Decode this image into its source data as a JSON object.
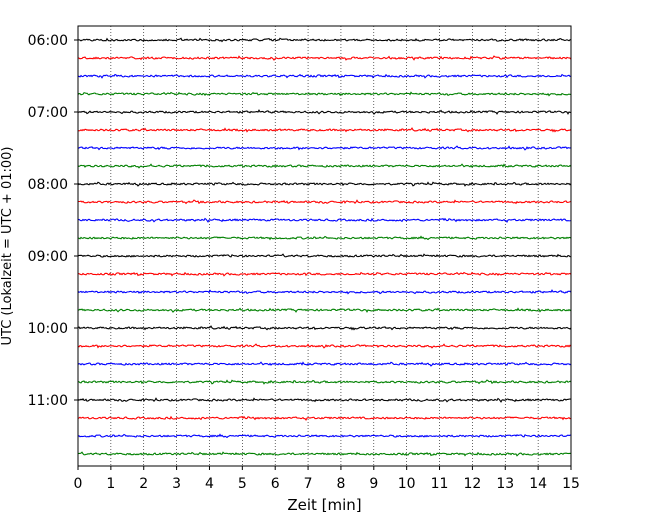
{
  "chart_data": {
    "type": "line",
    "subtype": "seismic-helicorder",
    "xlabel": "Zeit  [min]",
    "ylabel": "UTC (Lokalzeit = UTC + 01:00)",
    "xlim": [
      0,
      15
    ],
    "x_ticks": [
      "0",
      "1",
      "2",
      "3",
      "4",
      "5",
      "6",
      "7",
      "8",
      "9",
      "10",
      "11",
      "12",
      "13",
      "14",
      "15"
    ],
    "y_tick_labels": [
      "06:00",
      "07:00",
      "08:00",
      "09:00",
      "10:00",
      "11:00"
    ],
    "grid": "vertical dotted lines at each minute",
    "trace_start": "06:00",
    "trace_interval_minutes": 15,
    "trace_count": 24,
    "trace_color_cycle": [
      "#000000",
      "#ff0000",
      "#0000ff",
      "#008000"
    ],
    "signal": "low-amplitude background noise on all traces"
  }
}
